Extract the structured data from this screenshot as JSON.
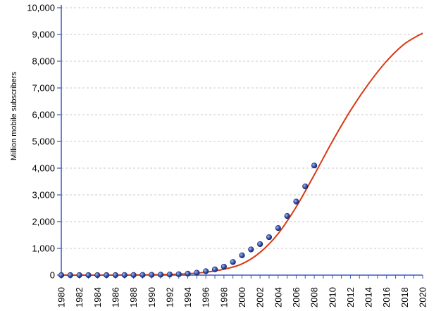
{
  "chart_data": {
    "type": "line",
    "title": "",
    "xlabel": "",
    "ylabel": "Million mobile subscribers",
    "xlim": [
      1980,
      2020
    ],
    "ylim": [
      0,
      10000
    ],
    "y_ticks": [
      0,
      1000,
      2000,
      3000,
      4000,
      5000,
      6000,
      7000,
      8000,
      9000,
      10000
    ],
    "y_tick_labels": [
      "0",
      "1,000",
      "2,000",
      "3,000",
      "4,000",
      "5,000",
      "6,000",
      "7,000",
      "8,000",
      "9,000",
      "10,000"
    ],
    "x_ticks": [
      1980,
      1982,
      1984,
      1986,
      1988,
      1990,
      1992,
      1994,
      1996,
      1998,
      2000,
      2002,
      2004,
      2006,
      2008,
      2010,
      2012,
      2014,
      2016,
      2018,
      2020
    ],
    "x_tick_labels": [
      "1980",
      "1982",
      "1984",
      "1986",
      "1988",
      "1990",
      "1992",
      "1994",
      "1996",
      "1998",
      "2000",
      "2002",
      "2004",
      "2006",
      "2008",
      "2010",
      "2012",
      "2014",
      "2016",
      "2018",
      "2020"
    ],
    "grid": "horizontal dashed",
    "series": [
      {
        "type": "scatter",
        "color": "#2f4fa8",
        "x": [
          1980,
          1981,
          1982,
          1983,
          1984,
          1985,
          1986,
          1987,
          1988,
          1989,
          1990,
          1991,
          1992,
          1993,
          1994,
          1995,
          1996,
          1997,
          1998,
          1999,
          2000,
          2001,
          2002,
          2003,
          2004,
          2005,
          2006,
          2007,
          2008
        ],
        "y": [
          0,
          0,
          0,
          0,
          0,
          1,
          1,
          3,
          4,
          7,
          11,
          16,
          23,
          34,
          56,
          91,
          145,
          215,
          318,
          490,
          740,
          960,
          1160,
          1420,
          1760,
          2210,
          2750,
          3320,
          4100
        ]
      },
      {
        "type": "line",
        "color": "#d93a12",
        "x": [
          1980,
          1982,
          1984,
          1986,
          1988,
          1990,
          1992,
          1994,
          1996,
          1998,
          2000,
          2002,
          2004,
          2006,
          2008,
          2010,
          2012,
          2014,
          2016,
          2018,
          2020
        ],
        "y": [
          0,
          0,
          0,
          2,
          5,
          12,
          25,
          50,
          110,
          220,
          420,
          850,
          1550,
          2550,
          3750,
          5000,
          6150,
          7150,
          8000,
          8650,
          9050
        ]
      }
    ]
  }
}
